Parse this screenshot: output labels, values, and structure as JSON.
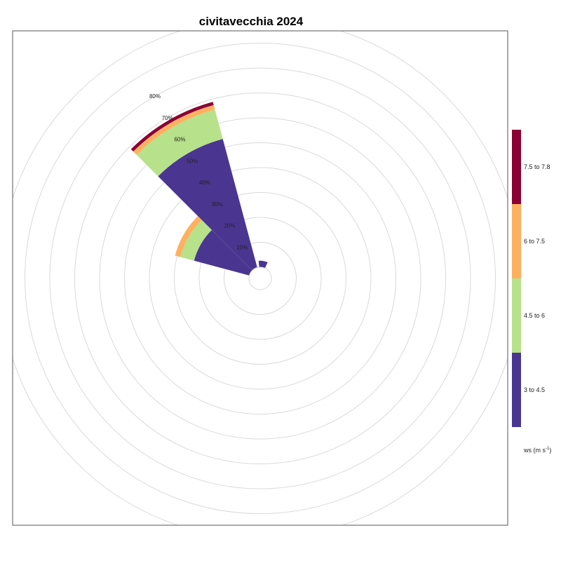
{
  "chart_data": {
    "type": "polar-stacked-bar",
    "title": "civitavecchia 2024",
    "radial_axis": {
      "ticks": [
        10,
        20,
        30,
        40,
        50,
        60,
        70,
        80
      ],
      "tick_labels": [
        "10%",
        "20%",
        "30%",
        "40%",
        "50%",
        "60%",
        "70%",
        "80%"
      ],
      "label_direction_deg": 330
    },
    "direction_bins": [
      {
        "direction_deg": 330,
        "segments": [
          {
            "category": "3 to 4.5",
            "cumulative": 53.5
          },
          {
            "category": "4.5 to 6",
            "cumulative": 65.7
          },
          {
            "category": "6 to 7.5",
            "cumulative": 67.6
          },
          {
            "category": "7.5 to 7.8",
            "cumulative": 68.9
          }
        ]
      },
      {
        "direction_deg": 300,
        "segments": [
          {
            "category": "3 to 4.5",
            "cumulative": 23.0
          },
          {
            "category": "4.5 to 6",
            "cumulative": 28.7
          },
          {
            "category": "6 to 7.5",
            "cumulative": 30.9
          }
        ]
      },
      {
        "direction_deg": 10,
        "segments": [
          {
            "category": "3 to 4.5",
            "cumulative": 2.6
          }
        ]
      }
    ],
    "legend": {
      "title_main": "ws (m s",
      "title_sup": "-1",
      "title_end": ")",
      "items": [
        {
          "label": "7.5 to 7.8",
          "color": "#8b0033"
        },
        {
          "label": "6 to 7.5",
          "color": "#fdb05f"
        },
        {
          "label": "4.5 to 6",
          "color": "#b7e18b"
        },
        {
          "label": "3 to 4.5",
          "color": "#4a3690"
        }
      ]
    },
    "grid": true
  }
}
